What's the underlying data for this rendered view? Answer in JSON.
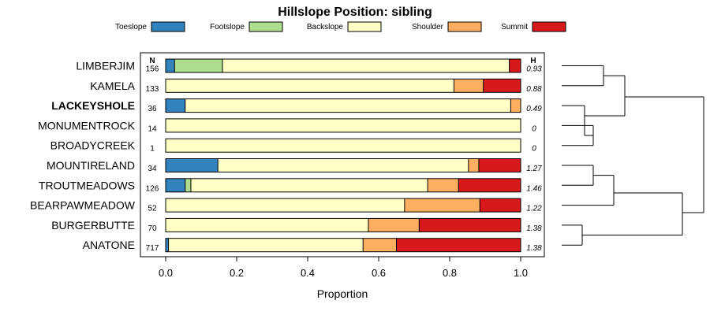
{
  "chart_data": {
    "type": "bar",
    "stacked": true,
    "orientation": "horizontal",
    "title": "Hillslope Position: sibling",
    "xlabel": "Proportion",
    "xlim": [
      0,
      1
    ],
    "xticks": [
      "0.0",
      "0.2",
      "0.4",
      "0.6",
      "0.8",
      "1.0"
    ],
    "xtick_values": [
      0,
      0.2,
      0.4,
      0.6,
      0.8,
      1.0
    ],
    "legend_position": "top",
    "count_header": "N",
    "entropy_header": "H",
    "categories": [
      "LIMBERJIM",
      "KAMELA",
      "LACKEYSHOLE",
      "MONUMENTROCK",
      "BROADYCREEK",
      "MOUNTIRELAND",
      "TROUTMEADOWS",
      "BEARPAWMEADOW",
      "BURGERBUTTE",
      "ANATONE"
    ],
    "highlighted_category": "LACKEYSHOLE",
    "counts": [
      "156",
      "133",
      "36",
      "14",
      "1",
      "34",
      "126",
      "52",
      "70",
      "717"
    ],
    "entropy": [
      "0.93",
      "0.88",
      "0.49",
      "0",
      "0",
      "1.27",
      "1.46",
      "1.22",
      "1.38",
      "1.38"
    ],
    "series": [
      {
        "name": "Toeslope",
        "color": "#3182bd",
        "values": [
          0.025,
          0,
          0.055,
          0,
          0,
          0.147,
          0.055,
          0,
          0,
          0.008
        ]
      },
      {
        "name": "Footslope",
        "color": "#addd8e",
        "values": [
          0.135,
          0,
          0,
          0,
          0,
          0,
          0.016,
          0,
          0,
          0
        ]
      },
      {
        "name": "Backslope",
        "color": "#ffffc6",
        "values": [
          0.808,
          0.812,
          0.917,
          1.0,
          1.0,
          0.706,
          0.667,
          0.673,
          0.571,
          0.548
        ]
      },
      {
        "name": "Shoulder",
        "color": "#fdae61",
        "values": [
          0,
          0.083,
          0.028,
          0,
          0,
          0.029,
          0.087,
          0.212,
          0.143,
          0.094
        ]
      },
      {
        "name": "Summit",
        "color": "#d7191c",
        "values": [
          0.032,
          0.105,
          0,
          0,
          0,
          0.118,
          0.175,
          0.115,
          0.286,
          0.35
        ]
      }
    ],
    "dendrogram": true
  }
}
